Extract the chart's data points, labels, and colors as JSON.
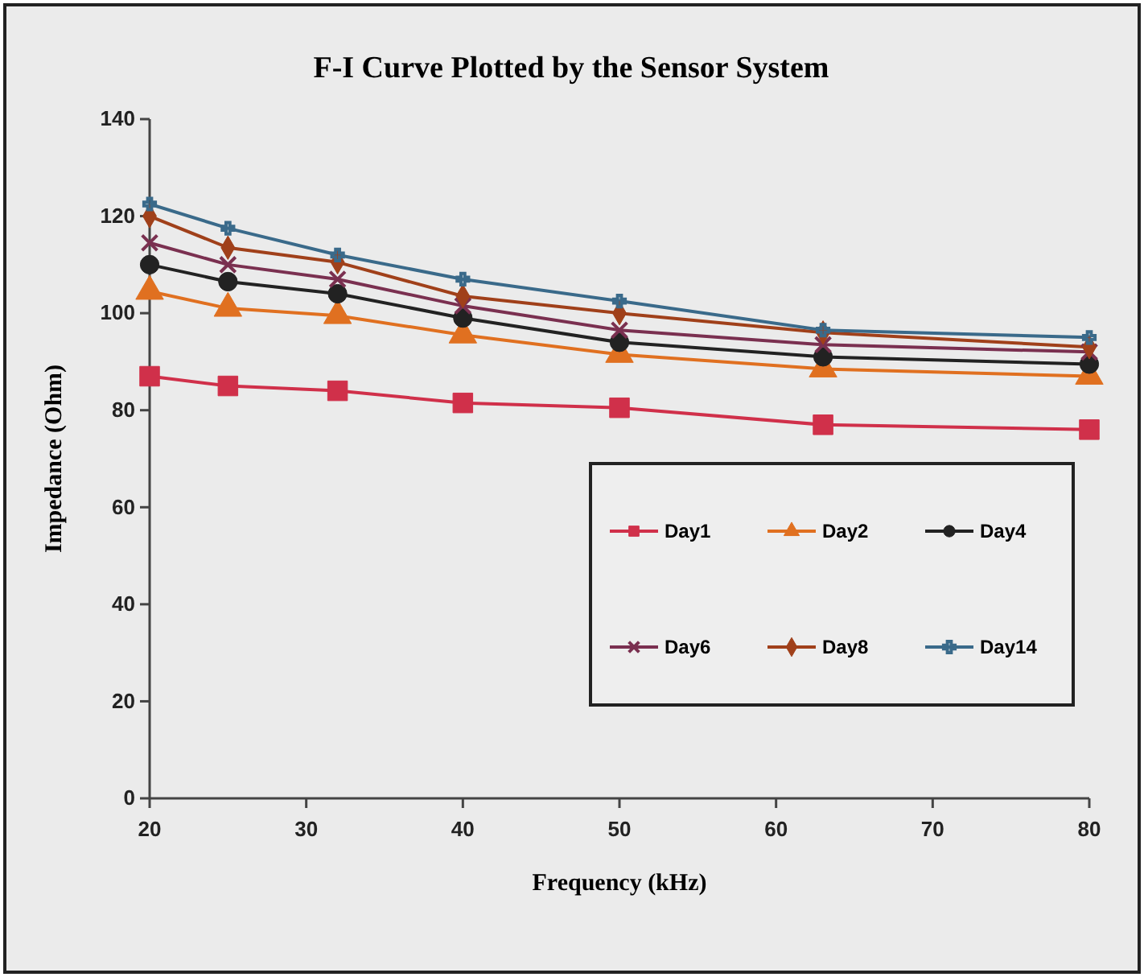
{
  "chart_data": {
    "type": "line",
    "title": "F-I Curve Plotted by the Sensor System",
    "xlabel": "Frequency (kHz)",
    "ylabel": "Impedance (Ohm)",
    "x": [
      20,
      25,
      32,
      40,
      50,
      63,
      80
    ],
    "xlim": [
      20,
      80
    ],
    "xticks": [
      20,
      30,
      40,
      50,
      60,
      70,
      80
    ],
    "ylim": [
      0,
      140
    ],
    "yticks": [
      0,
      20,
      40,
      60,
      80,
      100,
      120,
      140
    ],
    "grid": false,
    "legend": "bottom right",
    "series": [
      {
        "name": "Day1",
        "color": "#d0304a",
        "marker": "square",
        "values": [
          87,
          85,
          84,
          81.5,
          80.5,
          77,
          76
        ]
      },
      {
        "name": "Day2",
        "color": "#e07020",
        "marker": "triangle",
        "values": [
          104.5,
          101,
          99.5,
          95.5,
          91.5,
          88.5,
          87
        ]
      },
      {
        "name": "Day4",
        "color": "#222222",
        "marker": "circle",
        "values": [
          110,
          106.5,
          104,
          99,
          94,
          91,
          89.5
        ]
      },
      {
        "name": "Day6",
        "color": "#7a3050",
        "marker": "cross",
        "values": [
          114.5,
          110,
          107,
          101.5,
          96.5,
          93.5,
          92
        ]
      },
      {
        "name": "Day8",
        "color": "#a0401a",
        "marker": "diamond",
        "values": [
          120,
          113.5,
          110.5,
          103.5,
          100,
          96,
          93
        ]
      },
      {
        "name": "Day14",
        "color": "#3a6a8a",
        "marker": "plus",
        "values": [
          122.5,
          117.5,
          112,
          107,
          102.5,
          96.5,
          95
        ]
      }
    ]
  }
}
